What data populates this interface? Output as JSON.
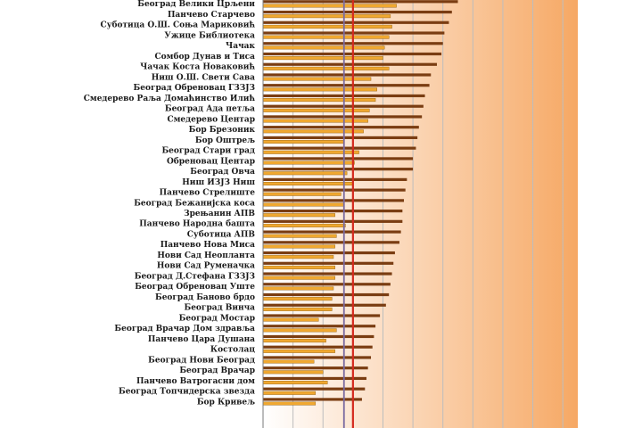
{
  "chart_data": {
    "type": "bar",
    "orientation": "horizontal",
    "title": "",
    "xlabel": "",
    "ylabel": "",
    "grid": true,
    "legend": "none",
    "xlim": [
      0,
      10.5
    ],
    "categories": [
      "Београд Велики Црљени",
      "Панчево Старчево",
      "Суботица О.Ш. Соња Мариковић",
      "Ужице Библиотека",
      "Чачак",
      "Сомбор Дунав и Тиса",
      "Чачак Коста Новаковић",
      "Ниш О.Ш. Свети Сава",
      "Београд Обреновац ГЗЗЈЗ",
      "Смедерево Рaља Домаћинство Илић",
      "Београд Ада петља",
      "Смедерево Центар",
      "Бор Брезоник",
      "Бор Оштрељ",
      "Београд Стари град",
      "Обреновац Центар",
      "Београд Овча",
      "Ниш ИЗЈЗ Ниш",
      "Панчево Стрелиште",
      "Београд Бежанијска коса",
      "Зрењанин АПВ",
      "Панчево Народна башта",
      "Суботица АПВ",
      "Панчево Нова Миса",
      "Нови Сад Неопланта",
      "Нови Сад Руменачка",
      "Београд  Д.Стефана ГЗЗЈЗ",
      "Београд Обреновац Уште",
      "Београд Баново брдо",
      "Београд Винча",
      "Београд Мостар",
      "Београд Врачар Дом здравља",
      "Панчево Цара Душана",
      "Костолац",
      "Београд Нови Београд",
      "Београд Врачар",
      "Панчево Ватрогасни дом",
      "Београд Топчидерска звезда",
      "Бор Кривељ"
    ],
    "series": [
      {
        "values": [
          4.45,
          4.25,
          4.3,
          4.2,
          4.05,
          4.0,
          4.2,
          3.6,
          3.8,
          3.75,
          3.55,
          3.5,
          3.35,
          2.7,
          3.2,
          3.05,
          2.8,
          3.0,
          2.6,
          2.7,
          2.4,
          2.75,
          2.45,
          2.4,
          2.35,
          2.4,
          2.4,
          2.35,
          2.3,
          2.3,
          1.85,
          2.45,
          2.1,
          2.4,
          1.7,
          2.0,
          2.15,
          1.75,
          1.75
        ]
      },
      {
        "values": [
          6.5,
          6.3,
          6.2,
          6.05,
          6.0,
          5.95,
          5.8,
          5.6,
          5.55,
          5.4,
          5.35,
          5.3,
          5.2,
          5.15,
          5.1,
          5.0,
          5.0,
          4.8,
          4.75,
          4.7,
          4.65,
          4.65,
          4.6,
          4.55,
          4.4,
          4.35,
          4.3,
          4.25,
          4.2,
          4.1,
          3.9,
          3.75,
          3.7,
          3.65,
          3.6,
          3.5,
          3.45,
          3.4,
          3.3
        ]
      }
    ],
    "reference_lines": [
      {
        "value": 2.7,
        "color": "#7a6aa0"
      },
      {
        "value": 3.0,
        "color": "#d42a1e"
      }
    ],
    "colors": {
      "series_1": "#f0a830",
      "series_2": "#7a3d12",
      "reference_1": "#7a6aa0",
      "reference_2": "#d42a1e",
      "gradient_start": "#ffffff",
      "gradient_end": "#f6a864",
      "gridline": "#bdbdbd"
    }
  }
}
